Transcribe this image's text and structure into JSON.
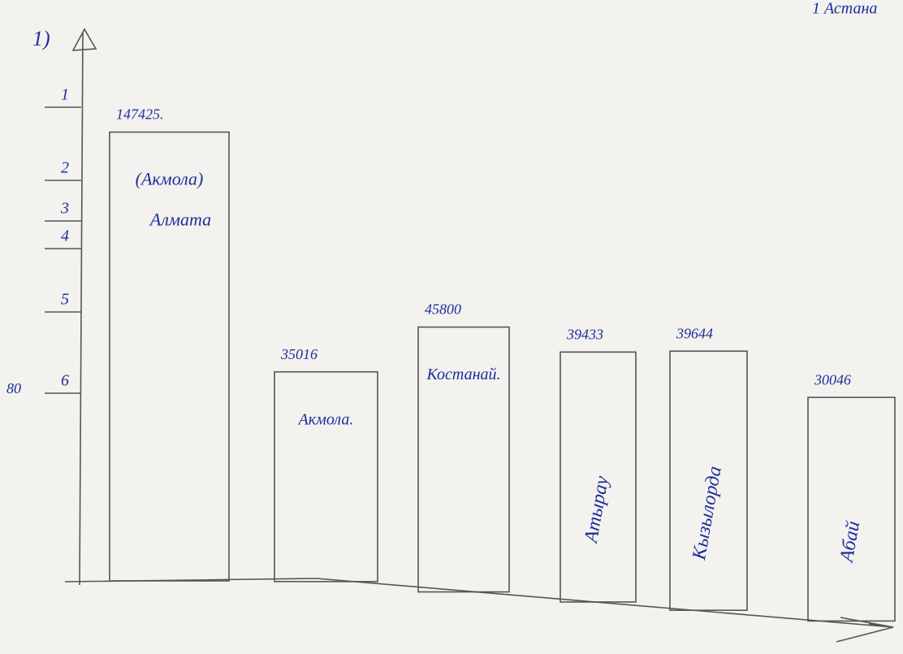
{
  "chart_data": {
    "type": "bar",
    "title": "1)",
    "note": "1 Астана",
    "categories": [
      "(Акмола) Алмата",
      "Акмола.",
      "Костанай.",
      "Атырау",
      "Кызылорда",
      "Абай"
    ],
    "values": [
      147425,
      35016,
      45800,
      39433,
      39644,
      30046
    ],
    "value_labels": [
      "147425.",
      "35016",
      "45800",
      "39433",
      "39644",
      "30046"
    ],
    "color": "#1e2d9c",
    "ylog": true,
    "ylim": [
      10000,
      200000
    ],
    "y_axis_labels": [
      "1",
      "2",
      "3",
      "4",
      "5",
      "6"
    ],
    "side_note": "80"
  }
}
